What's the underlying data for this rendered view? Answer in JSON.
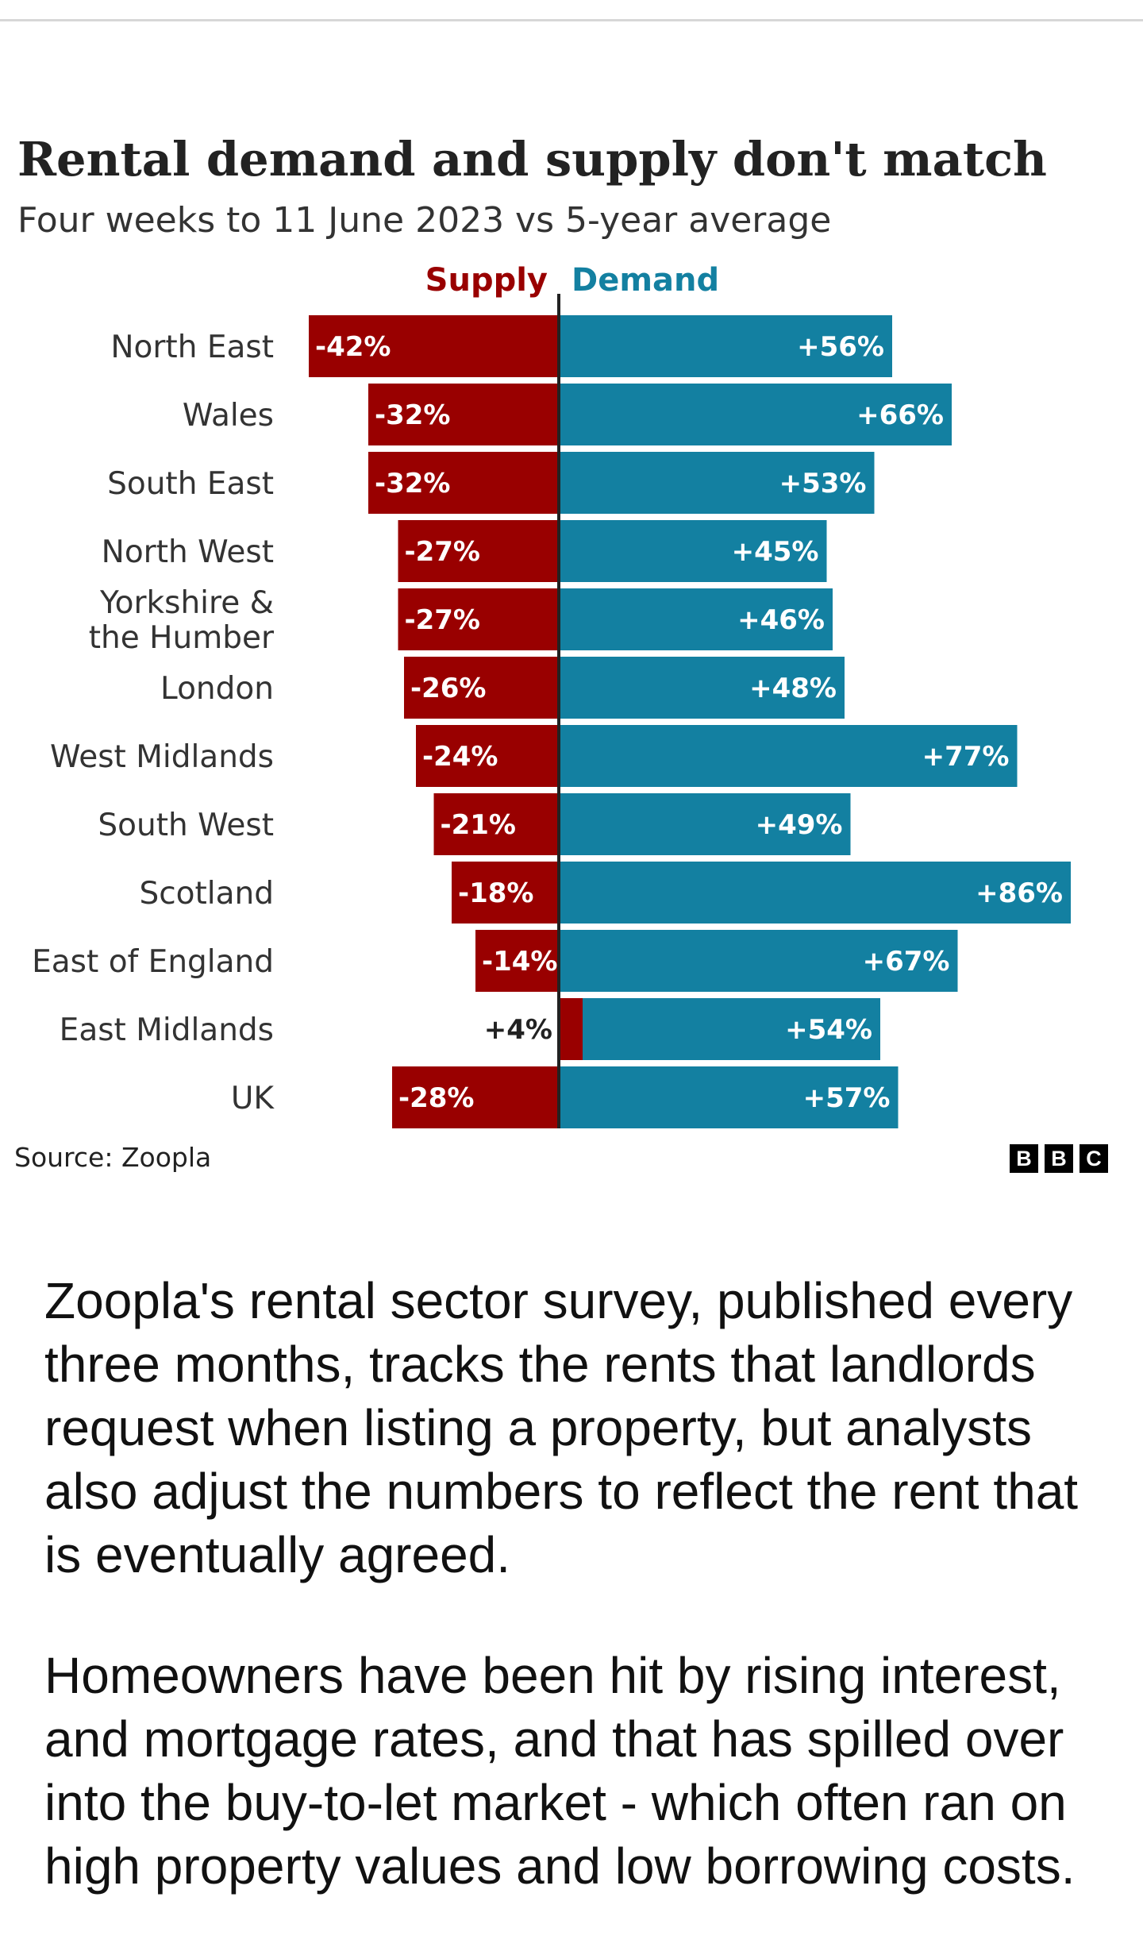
{
  "chart_data": {
    "type": "bar",
    "title": "Rental demand and supply don't match",
    "subtitle": "Four weeks to 11 June 2023 vs 5-year average",
    "legend": {
      "supply": "Supply",
      "demand": "Demand"
    },
    "categories": [
      "North East",
      "Wales",
      "South East",
      "North West",
      "Yorkshire & the Humber",
      "London",
      "West Midlands",
      "South West",
      "Scotland",
      "East of England",
      "East Midlands",
      "UK"
    ],
    "category_lines": [
      [
        "North East"
      ],
      [
        "Wales"
      ],
      [
        "South East"
      ],
      [
        "North West"
      ],
      [
        "Yorkshire &",
        "the Humber"
      ],
      [
        "London"
      ],
      [
        "West Midlands"
      ],
      [
        "South West"
      ],
      [
        "Scotland"
      ],
      [
        "East of England"
      ],
      [
        "East Midlands"
      ],
      [
        "UK"
      ]
    ],
    "series": [
      {
        "name": "Supply",
        "values": [
          -42,
          -32,
          -32,
          -27,
          -27,
          -26,
          -24,
          -21,
          -18,
          -14,
          4,
          -28
        ],
        "labels": [
          "-42%",
          "-32%",
          "-32%",
          "-27%",
          "-27%",
          "-26%",
          "-24%",
          "-21%",
          "-18%",
          "-14%",
          "+4%",
          "-28%"
        ]
      },
      {
        "name": "Demand",
        "values": [
          56,
          66,
          53,
          45,
          46,
          48,
          77,
          49,
          86,
          67,
          54,
          57
        ],
        "labels": [
          "+56%",
          "+66%",
          "+53%",
          "+45%",
          "+46%",
          "+48%",
          "+77%",
          "+49%",
          "+86%",
          "+67%",
          "+54%",
          "+57%"
        ]
      }
    ],
    "xlabel": "",
    "ylabel": "",
    "xlim": [
      -42,
      86
    ],
    "grid": false
  },
  "colors": {
    "supply": "#990000",
    "demand": "#1380a1",
    "axis": "#222222",
    "rule": "#333333"
  },
  "source": "Source: Zoopla",
  "logo": [
    "B",
    "B",
    "C"
  ],
  "article": {
    "paragraphs": [
      "Zoopla's rental sector survey, published every three months, tracks the rents that landlords request when listing a property, but analysts also adjust the numbers to reflect the rent that is eventually agreed.",
      "Homeowners have been hit by rising interest, and mortgage rates, and that has spilled over into the buy-to-let market - which often ran on high property values and low borrowing costs."
    ]
  }
}
